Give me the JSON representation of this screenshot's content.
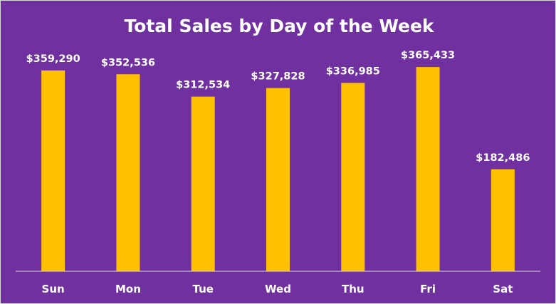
{
  "chart_data": {
    "type": "bar",
    "title": "Total Sales by Day of the Week",
    "xlabel": "",
    "ylabel": "",
    "categories": [
      "Sun",
      "Mon",
      "Tue",
      "Wed",
      "Thu",
      "Fri",
      "Sat"
    ],
    "values": [
      359290,
      352536,
      312534,
      327828,
      336985,
      365433,
      182486
    ],
    "data_labels": [
      "$359,290",
      "$352,536",
      "$312,534",
      "$327,828",
      "$336,985",
      "$365,433",
      "$182,486"
    ],
    "ylim": [
      0,
      400000
    ],
    "grid": false,
    "legend": "none",
    "colors": {
      "background": "#7030a0",
      "bar": "#ffc000",
      "text": "#ffffff",
      "axis": "#d9d9d9"
    }
  }
}
